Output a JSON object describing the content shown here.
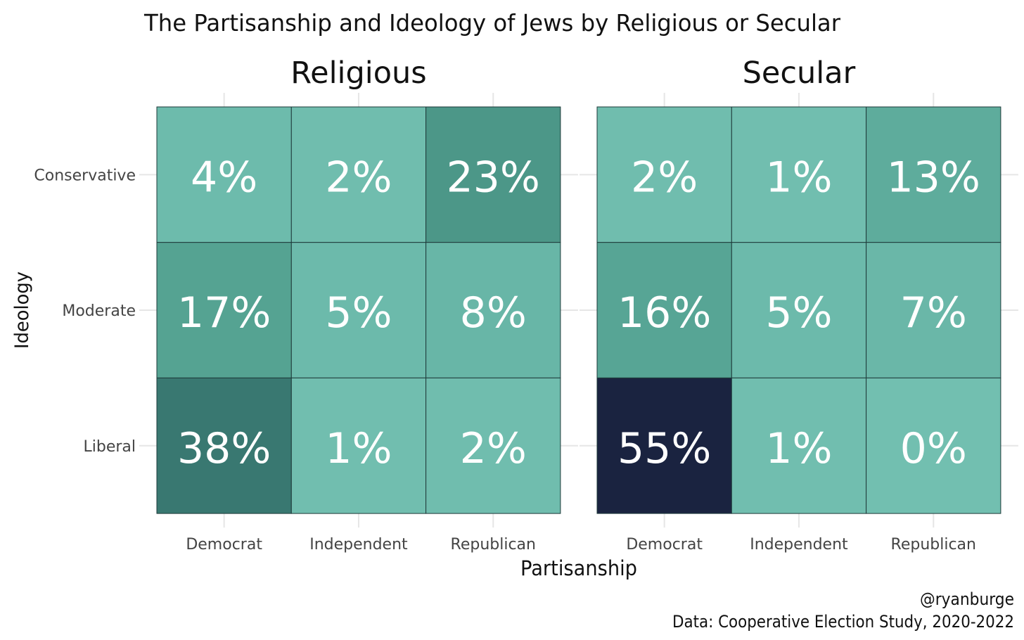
{
  "chart_data": {
    "type": "heatmap",
    "title": "The Partisanship and Ideology of Jews by Religious or Secular",
    "xlabel": "Partisanship",
    "ylabel": "Ideology",
    "x_categories": [
      "Democrat",
      "Independent",
      "Republican"
    ],
    "y_categories": [
      "Conservative",
      "Moderate",
      "Liberal"
    ],
    "value_suffix": "%",
    "grid": true,
    "legend": "none",
    "color_scale": {
      "low": "#72bfb0",
      "high": "#1a2340",
      "stops": [
        "#72bfb0",
        "#67b5a6",
        "#52a08f",
        "#468f82",
        "#3b7f75",
        "#2a4f58",
        "#1a2340"
      ]
    },
    "facets": [
      {
        "name": "Religious",
        "values": [
          [
            4,
            2,
            23
          ],
          [
            17,
            5,
            8
          ],
          [
            38,
            1,
            2
          ]
        ]
      },
      {
        "name": "Secular",
        "values": [
          [
            2,
            1,
            13
          ],
          [
            16,
            5,
            7
          ],
          [
            55,
            1,
            0
          ]
        ]
      }
    ]
  },
  "caption": {
    "author": "@ryanburge",
    "source": "Data: Cooperative Election Study, 2020-2022"
  }
}
